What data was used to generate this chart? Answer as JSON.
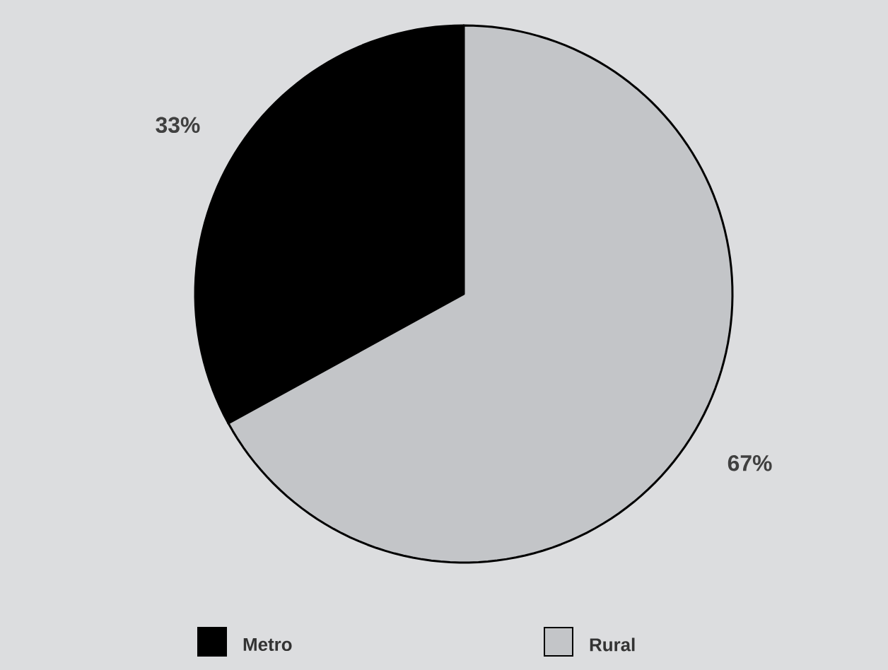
{
  "chart_data": {
    "type": "pie",
    "categories": [
      "Metro",
      "Rural"
    ],
    "values": [
      33,
      67
    ],
    "colors": [
      "#000000",
      "#c3c5c8"
    ],
    "value_labels": [
      "33%",
      "67%"
    ],
    "legend": "bottom"
  }
}
